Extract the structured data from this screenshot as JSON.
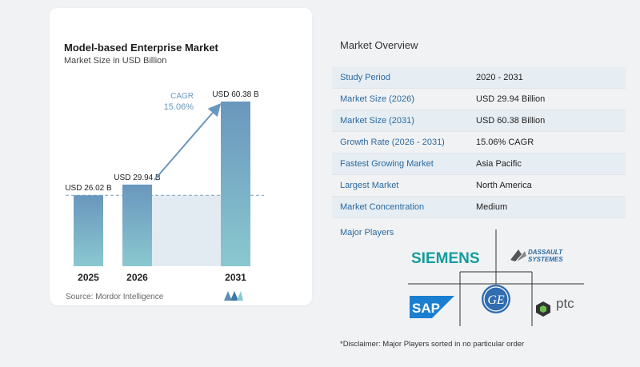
{
  "chart_data": {
    "type": "bar",
    "title": "Model-based Enterprise Market",
    "subtitle": "Market Size in USD Billion",
    "categories": [
      "2025",
      "2026",
      "2031"
    ],
    "values": [
      26.02,
      29.94,
      60.38
    ],
    "value_labels": [
      "USD 26.02 B",
      "USD 29.94 B",
      "USD 60.38 B"
    ],
    "unit": "USD Billion",
    "cagr_label": "CAGR",
    "cagr_value": "15.06%",
    "colors": {
      "bar_top": "#6a97bd",
      "bar_bottom": "#89c6cf",
      "band": "#e3ebf2",
      "arrow": "#6a97bd"
    }
  },
  "source": "Source:  Mordor Intelligence",
  "overview": {
    "title": "Market Overview",
    "rows": [
      {
        "label": "Study Period",
        "value": "2020 - 2031"
      },
      {
        "label": "Market Size (2026)",
        "value": "USD 29.94 Billion"
      },
      {
        "label": "Market Size (2031)",
        "value": "USD 60.38 Billion"
      },
      {
        "label": "Growth Rate (2026 - 2031)",
        "value": "15.06% CAGR"
      },
      {
        "label": "Fastest Growing Market",
        "value": "Asia Pacific"
      },
      {
        "label": "Largest Market",
        "value": "North America"
      },
      {
        "label": "Market Concentration",
        "value": "Medium"
      }
    ]
  },
  "major_players": {
    "title": "Major Players",
    "logos": [
      "SIEMENS",
      "DASSAULT SYSTEMES",
      "SAP",
      "GE",
      "ptc"
    ]
  },
  "disclaimer": "*Disclaimer: Major Players sorted in no particular order"
}
